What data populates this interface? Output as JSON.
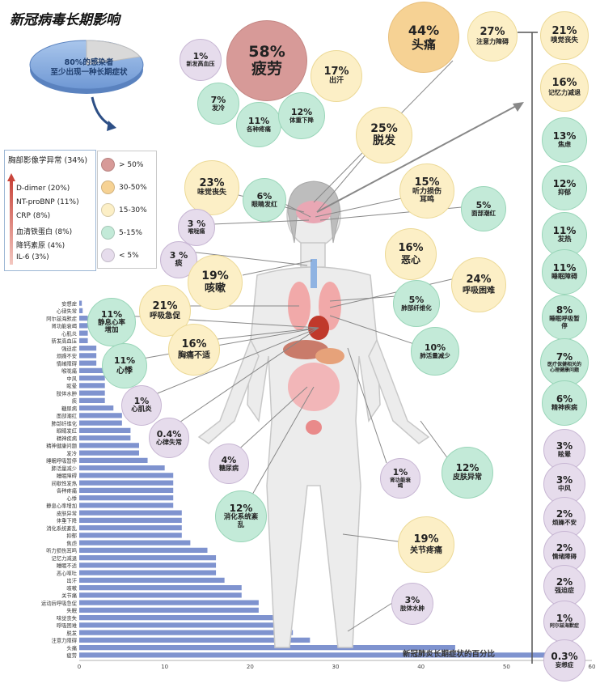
{
  "title": "新冠病毒长期影响",
  "pie": {
    "label_line1": "80%的感染者",
    "label_line2": "至少出现一种长期症状",
    "affected_percent": 80
  },
  "lab_legend": {
    "title": "胸部影像学异常 (34%)",
    "items": [
      "D-dimer (20%)",
      "NT-proBNP (11%)",
      "CRP (8%)",
      "血清铁蛋白 (8%)",
      "降钙素原 (4%)",
      "IL-6 (3%)"
    ]
  },
  "category_legend": [
    {
      "label": "> 50%",
      "color": "#d79a98"
    },
    {
      "label": "30-50%",
      "color": "#f6d294"
    },
    {
      "label": "15-30%",
      "color": "#fcefc6"
    },
    {
      "label": "5-15%",
      "color": "#c3ead8"
    },
    {
      "label": "< 5%",
      "color": "#e6dcec"
    }
  ],
  "bubbles": [
    {
      "pct": "58%",
      "label": "疲劳"
    },
    {
      "pct": "44%",
      "label": "头痛"
    },
    {
      "pct": "27%",
      "label": "注意力障碍"
    },
    {
      "pct": "21%",
      "label": "嗅觉丧失"
    },
    {
      "pct": "16%",
      "label": "记忆力减退"
    },
    {
      "pct": "13%",
      "label": "焦虑"
    },
    {
      "pct": "12%",
      "label": "抑郁"
    },
    {
      "pct": "11%",
      "label": "发热"
    },
    {
      "pct": "11%",
      "label": "睡眠障碍"
    },
    {
      "pct": "8%",
      "label": "睡眠呼吸暂停"
    },
    {
      "pct": "7%",
      "label": "医疗保健相关的心理健康问题"
    },
    {
      "pct": "6%",
      "label": "精神疾病"
    },
    {
      "pct": "3%",
      "label": "眩晕"
    },
    {
      "pct": "3%",
      "label": "中风"
    },
    {
      "pct": "2%",
      "label": "烦躁不安"
    },
    {
      "pct": "2%",
      "label": "情绪障碍"
    },
    {
      "pct": "2%",
      "label": "强迫症"
    },
    {
      "pct": "1%",
      "label": "阿尔兹海默症"
    },
    {
      "pct": "0.3%",
      "label": "妄想症"
    },
    {
      "pct": "1%",
      "label": "新发高血压"
    },
    {
      "pct": "17%",
      "label": "出汗"
    },
    {
      "pct": "7%",
      "label": "发冷"
    },
    {
      "pct": "11%",
      "label": "各种疼痛"
    },
    {
      "pct": "12%",
      "label": "体重下降"
    },
    {
      "pct": "25%",
      "label": "脱发"
    },
    {
      "pct": "23%",
      "label": "味觉丧失"
    },
    {
      "pct": "6%",
      "label": "眼睛发红"
    },
    {
      "pct": "15%",
      "label": "听力损伤耳鸣"
    },
    {
      "pct": "5%",
      "label": "面部潮红"
    },
    {
      "pct": "3 %",
      "label": "喉咙痛"
    },
    {
      "pct": "3 %",
      "label": "痰"
    },
    {
      "pct": "16%",
      "label": "恶心"
    },
    {
      "pct": "19%",
      "label": "咳嗽"
    },
    {
      "pct": "24%",
      "label": "呼吸困难"
    },
    {
      "pct": "21%",
      "label": "呼吸急促"
    },
    {
      "pct": "5%",
      "label": "肺部纤维化"
    },
    {
      "pct": "11%",
      "label": "静息心率增加"
    },
    {
      "pct": "16%",
      "label": "胸痛不适"
    },
    {
      "pct": "10%",
      "label": "肺活量减少"
    },
    {
      "pct": "11%",
      "label": "心悸"
    },
    {
      "pct": "1%",
      "label": "心肌炎"
    },
    {
      "pct": "0.4%",
      "label": "心律失常"
    },
    {
      "pct": "4%",
      "label": "糖尿病"
    },
    {
      "pct": "1%",
      "label": "肾功能衰竭"
    },
    {
      "pct": "12%",
      "label": "皮肤异常"
    },
    {
      "pct": "12%",
      "label": "消化系统紊乱"
    },
    {
      "pct": "19%",
      "label": "关节疼痛"
    },
    {
      "pct": "3%",
      "label": "肢体水肿"
    }
  ],
  "chart_data": {
    "type": "bar",
    "orientation": "horizontal",
    "title": "新冠肺炎长期症状的百分比",
    "xlim": [
      0,
      60
    ],
    "xticks": [
      0,
      10,
      20,
      30,
      40,
      50,
      60
    ],
    "categories": [
      "妄想症",
      "心律失常",
      "阿尔兹海默症",
      "肾功能衰竭",
      "心肌炎",
      "新发高血压",
      "强迫症",
      "烦躁不安",
      "情绪障碍",
      "喉咙痛",
      "中风",
      "眩晕",
      "肢体水肿",
      "痰",
      "糖尿病",
      "面部潮红",
      "肺部纤维化",
      "眼睛发红",
      "精神疾病",
      "精神健康问题",
      "发冷",
      "睡眠呼吸暂停",
      "肺活量减少",
      "睡眠障碍",
      "间歇性发热",
      "各种疼痛",
      "心悸",
      "静息心率增加",
      "皮肤异常",
      "体重下降",
      "消化系统紊乱",
      "抑郁",
      "焦虑",
      "听力损伤耳鸣",
      "记忆力减退",
      "睡眠不适",
      "恶心呕吐",
      "出汗",
      "咳嗽",
      "关节痛",
      "运动后呼吸急促",
      "失眠",
      "味觉丧失",
      "呼吸困难",
      "脱发",
      "注意力障碍",
      "头痛",
      "疲劳"
    ],
    "values": [
      0.3,
      0.4,
      1,
      1,
      1,
      1,
      2,
      2,
      2,
      3,
      3,
      3,
      3,
      3,
      4,
      5,
      5,
      6,
      6,
      7,
      7,
      8,
      10,
      11,
      11,
      11,
      11,
      11,
      12,
      12,
      12,
      12,
      13,
      15,
      16,
      16,
      16,
      17,
      19,
      19,
      21,
      21,
      23,
      24,
      25,
      27,
      44,
      58
    ]
  }
}
